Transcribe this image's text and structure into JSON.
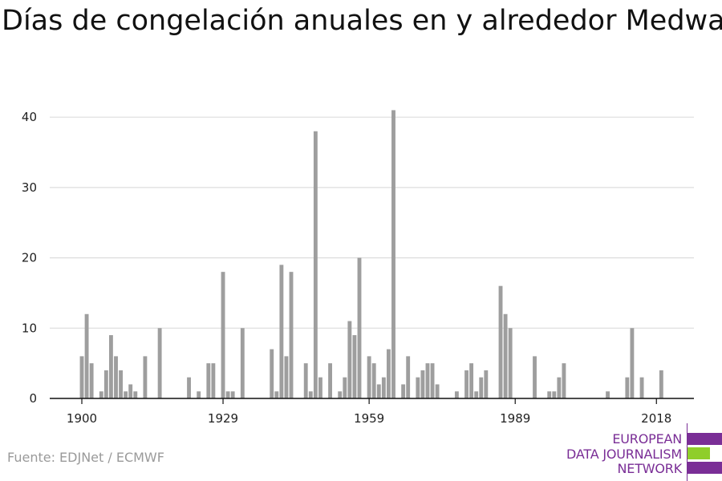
{
  "title": "Días de congelación anuales en y alrededor Medway",
  "source": "Fuente: EDJNet / ECMWF",
  "logo": {
    "lines": [
      "EUROPEAN",
      "DATA JOURNALISM",
      "NETWORK"
    ],
    "colors": {
      "purple": "#7a2e96",
      "green": "#8fce2a"
    }
  },
  "colors": {
    "bar": "#9e9e9e",
    "grid": "#dddddd",
    "axis": "#111111"
  },
  "chart_data": {
    "type": "bar",
    "title": "Días de congelación anuales en y alrededor Medway",
    "xlabel": "",
    "ylabel": "",
    "xlim": [
      1900,
      2022
    ],
    "ylim": [
      0,
      43
    ],
    "y_ticks": [
      0,
      10,
      20,
      30,
      40
    ],
    "x_ticks": [
      1900,
      1929,
      1959,
      1989,
      2018
    ],
    "grid": true,
    "x": [
      1900,
      1901,
      1902,
      1903,
      1904,
      1905,
      1906,
      1907,
      1908,
      1909,
      1910,
      1911,
      1912,
      1913,
      1914,
      1915,
      1916,
      1917,
      1918,
      1919,
      1920,
      1921,
      1922,
      1923,
      1924,
      1925,
      1926,
      1927,
      1928,
      1929,
      1930,
      1931,
      1932,
      1933,
      1934,
      1935,
      1936,
      1937,
      1938,
      1939,
      1940,
      1941,
      1942,
      1943,
      1944,
      1945,
      1946,
      1947,
      1948,
      1949,
      1950,
      1951,
      1952,
      1953,
      1954,
      1955,
      1956,
      1957,
      1958,
      1959,
      1960,
      1961,
      1962,
      1963,
      1964,
      1965,
      1966,
      1967,
      1968,
      1969,
      1970,
      1971,
      1972,
      1973,
      1974,
      1975,
      1976,
      1977,
      1978,
      1979,
      1980,
      1981,
      1982,
      1983,
      1984,
      1985,
      1986,
      1987,
      1988,
      1989,
      1990,
      1991,
      1992,
      1993,
      1994,
      1995,
      1996,
      1997,
      1998,
      1999,
      2000,
      2001,
      2002,
      2003,
      2004,
      2005,
      2006,
      2007,
      2008,
      2009,
      2010,
      2011,
      2012,
      2013,
      2014,
      2015,
      2016,
      2017,
      2018,
      2019,
      2020,
      2021
    ],
    "values": [
      6,
      12,
      5,
      0,
      1,
      4,
      9,
      6,
      4,
      1,
      2,
      1,
      0,
      6,
      0,
      0,
      10,
      0,
      0,
      0,
      0,
      0,
      3,
      0,
      1,
      0,
      5,
      5,
      0,
      18,
      1,
      1,
      0,
      10,
      0,
      0,
      0,
      0,
      0,
      7,
      1,
      19,
      6,
      18,
      0,
      0,
      5,
      1,
      38,
      3,
      0,
      5,
      0,
      1,
      3,
      11,
      9,
      20,
      0,
      6,
      5,
      2,
      3,
      7,
      41,
      0,
      2,
      6,
      0,
      3,
      4,
      5,
      5,
      2,
      0,
      0,
      0,
      1,
      0,
      4,
      5,
      1,
      3,
      4,
      0,
      0,
      16,
      12,
      10,
      0,
      0,
      0,
      0,
      6,
      0,
      0,
      1,
      1,
      3,
      5,
      0,
      0,
      0,
      0,
      0,
      0,
      0,
      0,
      1,
      0,
      0,
      0,
      3,
      10,
      0,
      3,
      0,
      0,
      0,
      4,
      0,
      0
    ]
  }
}
